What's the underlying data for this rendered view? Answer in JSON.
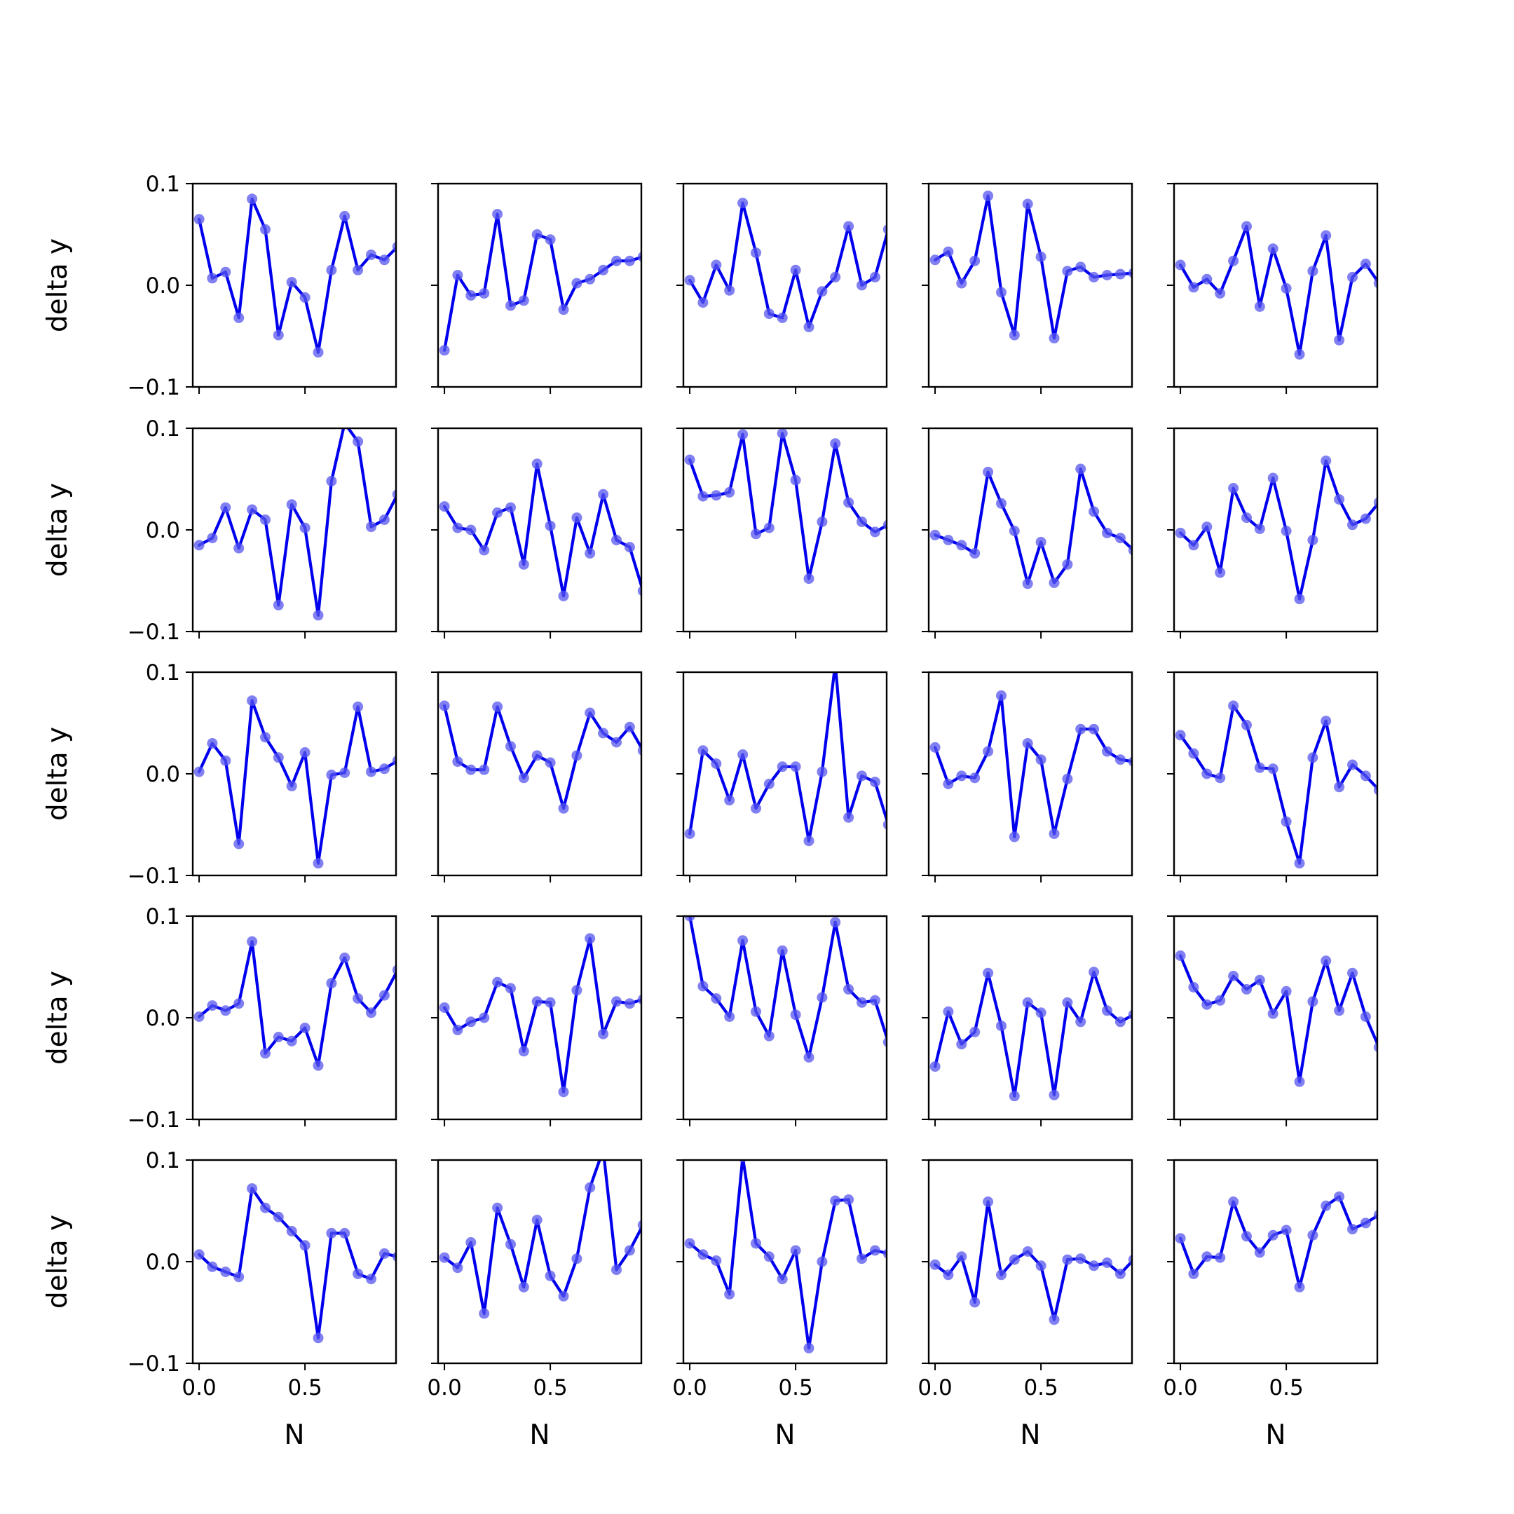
{
  "figure": {
    "xlabel": "N",
    "ylabel": "delta y",
    "rows": 5,
    "cols": 5
  },
  "chart_data": {
    "type": "line",
    "layout": "5x5 grid of small multiples, shared x and y axes",
    "xlabel": "N",
    "ylabel": "delta y",
    "xlim": [
      -0.03,
      0.93
    ],
    "ylim": [
      -0.1,
      0.1
    ],
    "xticks": [
      0.0,
      0.5
    ],
    "yticks": [
      -0.1,
      0.0,
      0.1
    ],
    "x": [
      0.0,
      0.0625,
      0.125,
      0.1875,
      0.25,
      0.3125,
      0.375,
      0.4375,
      0.5,
      0.5625,
      0.625,
      0.6875,
      0.75,
      0.8125,
      0.875,
      0.9375
    ],
    "series_color": "#0000ee",
    "marker_color": "#5555ee",
    "grid": false,
    "legend": "none",
    "panels": [
      {
        "row": 1,
        "col": 1,
        "values": [
          0.065,
          0.007,
          0.013,
          -0.032,
          0.085,
          0.055,
          -0.049,
          0.003,
          -0.012,
          -0.066,
          0.015,
          0.068,
          0.015,
          0.03,
          0.025,
          0.038
        ]
      },
      {
        "row": 1,
        "col": 2,
        "values": [
          -0.064,
          0.01,
          -0.01,
          -0.008,
          0.07,
          -0.02,
          -0.015,
          0.05,
          0.045,
          -0.024,
          0.002,
          0.006,
          0.015,
          0.024,
          0.024,
          0.028
        ]
      },
      {
        "row": 1,
        "col": 3,
        "values": [
          0.005,
          -0.017,
          0.02,
          -0.005,
          0.081,
          0.032,
          -0.028,
          -0.032,
          0.015,
          -0.041,
          -0.006,
          0.008,
          0.058,
          0.0,
          0.008,
          0.055
        ]
      },
      {
        "row": 1,
        "col": 4,
        "values": [
          0.025,
          0.033,
          0.002,
          0.024,
          0.088,
          -0.007,
          -0.049,
          0.08,
          0.028,
          -0.052,
          0.014,
          0.018,
          0.008,
          0.01,
          0.011,
          0.012
        ]
      },
      {
        "row": 1,
        "col": 5,
        "values": [
          0.02,
          -0.002,
          0.006,
          -0.008,
          0.024,
          0.058,
          -0.021,
          0.036,
          -0.003,
          -0.068,
          0.014,
          0.049,
          -0.054,
          0.008,
          0.021,
          0.002
        ]
      },
      {
        "row": 2,
        "col": 1,
        "values": [
          -0.015,
          -0.008,
          0.022,
          -0.018,
          0.02,
          0.01,
          -0.074,
          0.025,
          0.002,
          -0.084,
          0.048,
          0.105,
          0.087,
          0.003,
          0.01,
          0.035
        ]
      },
      {
        "row": 2,
        "col": 2,
        "values": [
          0.023,
          0.002,
          0.0,
          -0.02,
          0.017,
          0.022,
          -0.034,
          0.065,
          0.004,
          -0.065,
          0.012,
          -0.023,
          0.035,
          -0.01,
          -0.017,
          -0.06
        ]
      },
      {
        "row": 2,
        "col": 3,
        "values": [
          0.069,
          0.033,
          0.034,
          0.037,
          0.094,
          -0.004,
          0.002,
          0.095,
          0.049,
          -0.048,
          0.008,
          0.085,
          0.027,
          0.008,
          -0.002,
          0.005
        ]
      },
      {
        "row": 2,
        "col": 4,
        "values": [
          -0.005,
          -0.01,
          -0.015,
          -0.023,
          0.057,
          0.026,
          -0.001,
          -0.053,
          -0.012,
          -0.052,
          -0.034,
          0.06,
          0.018,
          -0.003,
          -0.008,
          -0.02
        ]
      },
      {
        "row": 2,
        "col": 5,
        "values": [
          -0.003,
          -0.015,
          0.003,
          -0.042,
          0.041,
          0.012,
          0.001,
          0.051,
          -0.001,
          -0.068,
          -0.01,
          0.068,
          0.03,
          0.005,
          0.011,
          0.027
        ]
      },
      {
        "row": 3,
        "col": 1,
        "values": [
          0.002,
          0.03,
          0.013,
          -0.069,
          0.072,
          0.036,
          0.016,
          -0.012,
          0.021,
          -0.088,
          -0.001,
          0.001,
          0.066,
          0.002,
          0.005,
          0.013
        ]
      },
      {
        "row": 3,
        "col": 2,
        "values": [
          0.067,
          0.012,
          0.004,
          0.004,
          0.066,
          0.027,
          -0.004,
          0.018,
          0.011,
          -0.034,
          0.018,
          0.06,
          0.04,
          0.031,
          0.046,
          0.023
        ]
      },
      {
        "row": 3,
        "col": 3,
        "values": [
          -0.059,
          0.023,
          0.01,
          -0.026,
          0.019,
          -0.034,
          -0.01,
          0.007,
          0.007,
          -0.066,
          0.002,
          0.108,
          -0.043,
          -0.002,
          -0.008,
          -0.05
        ]
      },
      {
        "row": 3,
        "col": 4,
        "values": [
          0.026,
          -0.01,
          -0.002,
          -0.004,
          0.022,
          0.077,
          -0.062,
          0.03,
          0.014,
          -0.059,
          -0.005,
          0.044,
          0.044,
          0.022,
          0.014,
          0.012
        ]
      },
      {
        "row": 3,
        "col": 5,
        "values": [
          0.038,
          0.02,
          0.0,
          -0.004,
          0.067,
          0.048,
          0.006,
          0.005,
          -0.047,
          -0.088,
          0.016,
          0.052,
          -0.013,
          0.009,
          -0.002,
          -0.016
        ]
      },
      {
        "row": 4,
        "col": 1,
        "values": [
          0.001,
          0.012,
          0.007,
          0.014,
          0.075,
          -0.035,
          -0.019,
          -0.023,
          -0.01,
          -0.047,
          0.034,
          0.059,
          0.019,
          0.005,
          0.022,
          0.047
        ]
      },
      {
        "row": 4,
        "col": 2,
        "values": [
          0.01,
          -0.012,
          -0.004,
          0.0,
          0.035,
          0.029,
          -0.033,
          0.016,
          0.015,
          -0.073,
          0.027,
          0.078,
          -0.016,
          0.016,
          0.014,
          0.018
        ]
      },
      {
        "row": 4,
        "col": 3,
        "values": [
          0.1,
          0.031,
          0.019,
          0.001,
          0.076,
          0.006,
          -0.018,
          0.066,
          0.003,
          -0.039,
          0.02,
          0.094,
          0.028,
          0.015,
          0.017,
          -0.024
        ]
      },
      {
        "row": 4,
        "col": 4,
        "values": [
          -0.048,
          0.006,
          -0.026,
          -0.014,
          0.044,
          -0.008,
          -0.077,
          0.015,
          0.005,
          -0.076,
          0.015,
          -0.004,
          0.045,
          0.007,
          -0.004,
          0.003
        ]
      },
      {
        "row": 4,
        "col": 5,
        "values": [
          0.061,
          0.03,
          0.013,
          0.017,
          0.041,
          0.028,
          0.037,
          0.004,
          0.026,
          -0.063,
          0.016,
          0.056,
          0.007,
          0.044,
          0.001,
          -0.029
        ]
      },
      {
        "row": 5,
        "col": 1,
        "values": [
          0.007,
          -0.005,
          -0.01,
          -0.015,
          0.072,
          0.053,
          0.044,
          0.03,
          0.016,
          -0.075,
          0.028,
          0.028,
          -0.012,
          -0.017,
          0.008,
          0.005
        ]
      },
      {
        "row": 5,
        "col": 2,
        "values": [
          0.004,
          -0.006,
          0.019,
          -0.051,
          0.053,
          0.017,
          -0.025,
          0.041,
          -0.014,
          -0.034,
          0.003,
          0.073,
          0.11,
          -0.008,
          0.011,
          0.036
        ]
      },
      {
        "row": 5,
        "col": 3,
        "values": [
          0.018,
          0.007,
          0.001,
          -0.032,
          0.103,
          0.018,
          0.005,
          -0.017,
          0.011,
          -0.085,
          0.0,
          0.06,
          0.061,
          0.003,
          0.011,
          0.008
        ]
      },
      {
        "row": 5,
        "col": 4,
        "values": [
          -0.003,
          -0.013,
          0.005,
          -0.04,
          0.059,
          -0.013,
          0.002,
          0.01,
          -0.004,
          -0.057,
          0.002,
          0.003,
          -0.004,
          -0.001,
          -0.012,
          0.002
        ]
      },
      {
        "row": 5,
        "col": 5,
        "values": [
          0.023,
          -0.012,
          0.005,
          0.004,
          0.059,
          0.025,
          0.009,
          0.026,
          0.031,
          -0.025,
          0.026,
          0.055,
          0.064,
          0.032,
          0.038,
          0.046
        ]
      }
    ]
  }
}
